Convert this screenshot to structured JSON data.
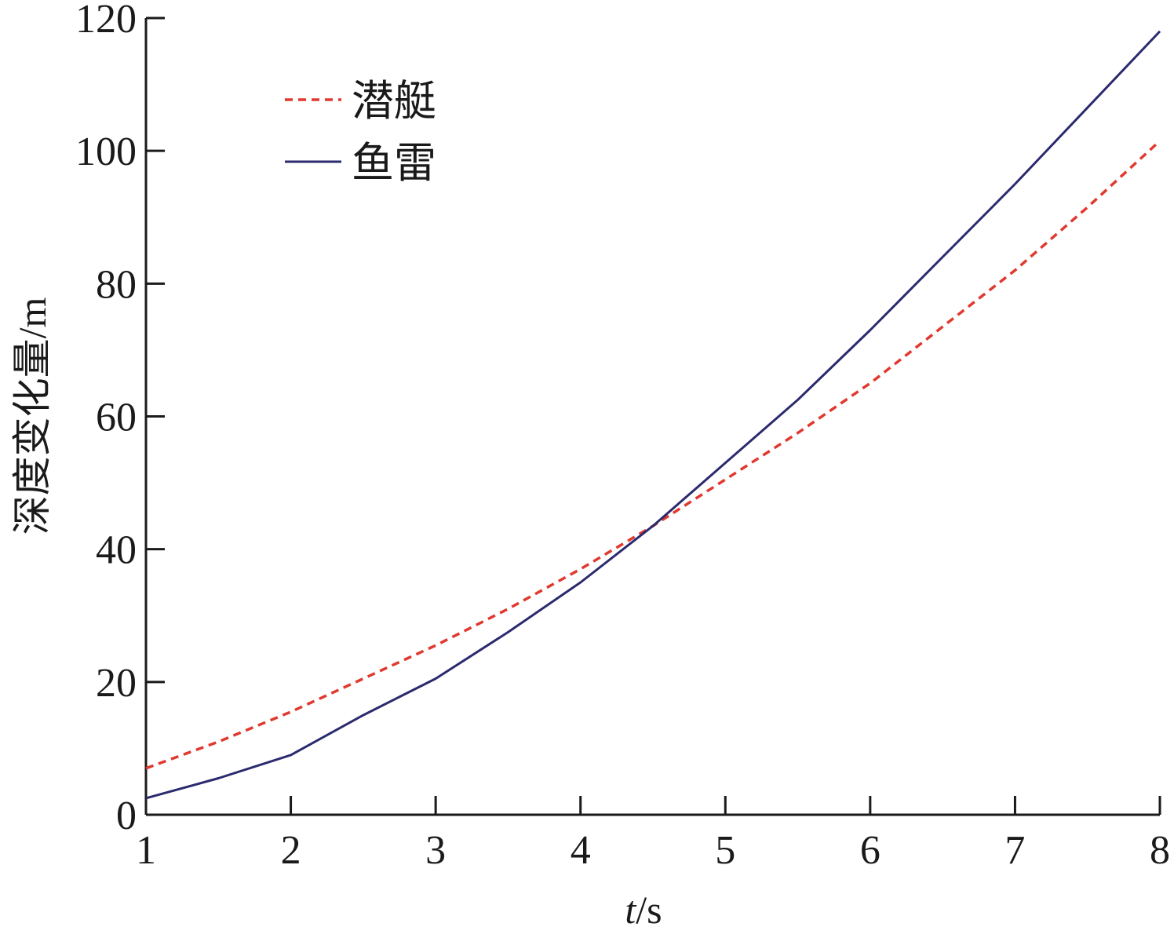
{
  "chart_data": {
    "type": "line",
    "xlabel_italic": "t",
    "xlabel_unit": "/s",
    "ylabel": "深度变化量/m",
    "xlim": [
      1,
      8
    ],
    "ylim": [
      0,
      120
    ],
    "x_ticks": [
      1,
      2,
      3,
      4,
      5,
      6,
      7,
      8
    ],
    "y_ticks": [
      0,
      20,
      40,
      60,
      80,
      100,
      120
    ],
    "legend_position": "top-left",
    "grid": false,
    "series": [
      {
        "name": "潜艇",
        "color": "#e0392f",
        "style": "dashed",
        "x": [
          1,
          1.5,
          2,
          2.5,
          3,
          3.5,
          4,
          4.5,
          5,
          5.5,
          6,
          6.5,
          7,
          7.5,
          8
        ],
        "y": [
          7,
          11,
          15.5,
          20.5,
          25.5,
          31,
          37,
          43.5,
          50.5,
          57.5,
          65,
          73.5,
          82,
          91.5,
          101.5
        ]
      },
      {
        "name": "鱼雷",
        "color": "#2b2a6e",
        "style": "solid",
        "x": [
          1,
          1.5,
          2,
          2.5,
          3,
          3.5,
          4,
          4.5,
          5,
          5.5,
          6,
          6.5,
          7,
          7.5,
          8
        ],
        "y": [
          2.5,
          5.5,
          9,
          15,
          20.5,
          27.5,
          35,
          43.5,
          53,
          62.5,
          73,
          84,
          95,
          106.5,
          118
        ]
      }
    ]
  }
}
